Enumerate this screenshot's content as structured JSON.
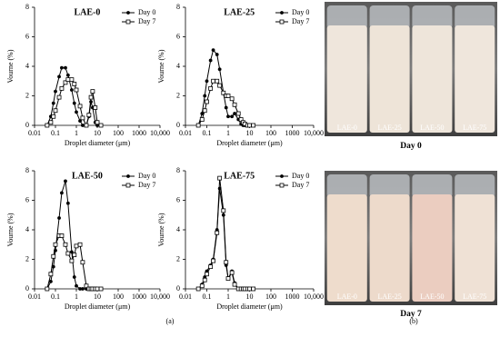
{
  "figure": {
    "panel_a_label": "(a)",
    "panel_b_label": "(b)"
  },
  "chart_data": [
    {
      "type": "line",
      "title": "LAE-0",
      "x_label": "Droplet diameter (μm)",
      "y_label": "Vourne (%)",
      "x_scale": "log",
      "xlim": [
        0.01,
        10000
      ],
      "xticks": [
        0.01,
        0.1,
        1,
        10,
        100,
        1000,
        {
          "value": 10000,
          "label": "10,000"
        }
      ],
      "ylim": [
        0,
        8
      ],
      "yticks": [
        0,
        2,
        4,
        6,
        8
      ],
      "legend": "upper right",
      "x": [
        0.04,
        0.06,
        0.08,
        0.1,
        0.15,
        0.2,
        0.3,
        0.4,
        0.6,
        0.8,
        1,
        1.5,
        2,
        3,
        4,
        5,
        6,
        8,
        10,
        15
      ],
      "series": [
        {
          "name": "Day 0",
          "color": "#000000",
          "marker": "circle",
          "values": [
            0,
            0.6,
            1.5,
            2.3,
            3.3,
            3.9,
            3.9,
            3.4,
            2.4,
            1.5,
            0.9,
            0.3,
            0,
            0,
            0.6,
            1.6,
            1.2,
            0.2,
            0,
            0
          ]
        },
        {
          "name": "Day 7",
          "color": "#000000",
          "marker": "square",
          "values": [
            0,
            0.2,
            0.6,
            1.0,
            1.9,
            2.5,
            2.9,
            3.1,
            3.1,
            2.8,
            2.4,
            1.3,
            0.5,
            0,
            0.7,
            1.9,
            2.3,
            1.2,
            0.2,
            0
          ]
        }
      ]
    },
    {
      "type": "line",
      "title": "LAE-25",
      "x_label": "Droplet diameter (μm)",
      "y_label": "Vourne (%)",
      "x_scale": "log",
      "xlim": [
        0.01,
        10000
      ],
      "xticks": [
        0.01,
        0.1,
        1,
        10,
        100,
        1000,
        {
          "value": 10000,
          "label": "10,000"
        }
      ],
      "ylim": [
        0,
        8
      ],
      "yticks": [
        0,
        2,
        4,
        6,
        8
      ],
      "legend": "upper right",
      "x": [
        0.04,
        0.06,
        0.08,
        0.1,
        0.15,
        0.2,
        0.3,
        0.4,
        0.6,
        0.8,
        1,
        1.5,
        2,
        3,
        4,
        5,
        6,
        8,
        10,
        15
      ],
      "series": [
        {
          "name": "Day 0",
          "color": "#000000",
          "marker": "circle",
          "values": [
            0,
            0.8,
            2.0,
            3.0,
            4.4,
            5.1,
            4.8,
            3.8,
            2.2,
            1.2,
            0.6,
            0.6,
            0.8,
            0.4,
            0.1,
            0,
            0,
            0,
            0,
            0
          ]
        },
        {
          "name": "Day 7",
          "color": "#000000",
          "marker": "square",
          "values": [
            0,
            0.4,
            1.0,
            1.6,
            2.5,
            3.0,
            3.0,
            2.7,
            2.2,
            2.0,
            2.0,
            1.8,
            1.4,
            0.8,
            0.4,
            0.2,
            0.1,
            0,
            0,
            0
          ]
        }
      ]
    },
    {
      "type": "line",
      "title": "LAE-50",
      "x_label": "Droplet diameter (μm)",
      "y_label": "Vourne (%)",
      "x_scale": "log",
      "xlim": [
        0.01,
        10000
      ],
      "xticks": [
        0.01,
        0.1,
        1,
        10,
        100,
        1000,
        {
          "value": 10000,
          "label": "10,000"
        }
      ],
      "ylim": [
        0,
        8
      ],
      "yticks": [
        0,
        2,
        4,
        6,
        8
      ],
      "legend": "upper right",
      "x": [
        0.04,
        0.06,
        0.08,
        0.1,
        0.15,
        0.2,
        0.3,
        0.4,
        0.6,
        0.8,
        1,
        1.5,
        2,
        3,
        4,
        5,
        6,
        8,
        10,
        15
      ],
      "series": [
        {
          "name": "Day 0",
          "color": "#000000",
          "marker": "circle",
          "values": [
            0,
            0.5,
            1.5,
            2.6,
            4.8,
            6.5,
            7.3,
            5.8,
            2.5,
            0.8,
            0.2,
            0,
            0,
            0,
            0,
            0,
            0,
            0,
            0,
            0
          ]
        },
        {
          "name": "Day 7",
          "color": "#000000",
          "marker": "square",
          "values": [
            0,
            1.0,
            2.2,
            3.0,
            3.6,
            3.6,
            3.0,
            2.4,
            1.9,
            2.3,
            2.9,
            3.0,
            1.8,
            0.2,
            0,
            0,
            0,
            0,
            0,
            0
          ]
        }
      ]
    },
    {
      "type": "line",
      "title": "LAE-75",
      "x_label": "Droplet diameter (μm)",
      "y_label": "Vourne (%)",
      "x_scale": "log",
      "xlim": [
        0.01,
        10000
      ],
      "xticks": [
        0.01,
        0.1,
        1,
        10,
        100,
        1000,
        {
          "value": 10000,
          "label": "10,000"
        }
      ],
      "ylim": [
        0,
        8
      ],
      "yticks": [
        0,
        2,
        4,
        6,
        8
      ],
      "legend": "upper right",
      "x": [
        0.04,
        0.06,
        0.08,
        0.1,
        0.15,
        0.2,
        0.3,
        0.4,
        0.6,
        0.8,
        1,
        1.5,
        2,
        3,
        4,
        5,
        6,
        8,
        10,
        15
      ],
      "series": [
        {
          "name": "Day 0",
          "color": "#000000",
          "marker": "circle",
          "values": [
            0,
            0.3,
            0.8,
            1.2,
            1.6,
            2.0,
            4.0,
            6.8,
            5.0,
            1.6,
            0.7,
            1.2,
            0.4,
            0,
            0,
            0,
            0,
            0,
            0,
            0
          ]
        },
        {
          "name": "Day 7",
          "color": "#000000",
          "marker": "square",
          "values": [
            0,
            0.2,
            0.6,
            1.0,
            1.5,
            1.9,
            3.8,
            7.5,
            5.3,
            1.8,
            0.7,
            1.1,
            0.3,
            0,
            0,
            0,
            0,
            0,
            0,
            0
          ]
        }
      ]
    }
  ],
  "photos": [
    {
      "caption": "Day 0",
      "vials": [
        "LAE-0",
        "LAE-25",
        "LAE-50",
        "LAE-75"
      ]
    },
    {
      "caption": "Day 7",
      "vials": [
        "LAE-0",
        "LAE-25",
        "LAE-50",
        "LAE-75"
      ]
    }
  ]
}
